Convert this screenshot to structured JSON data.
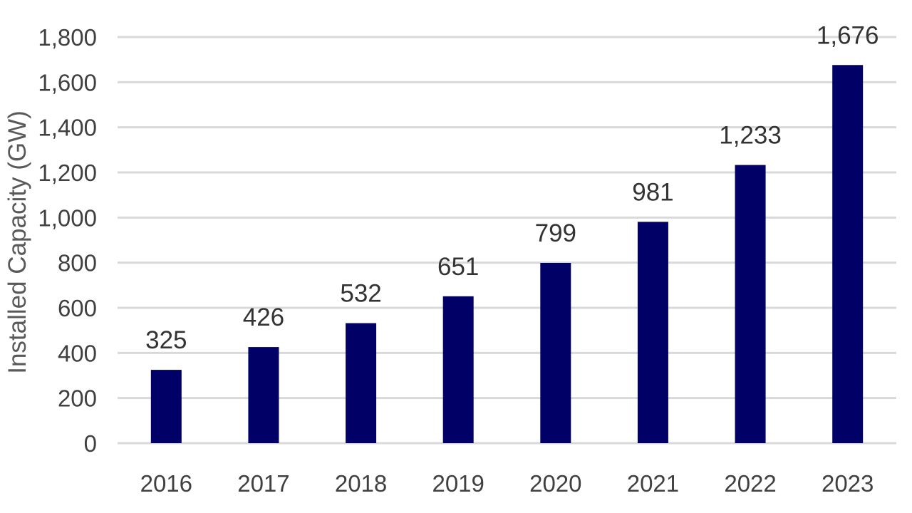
{
  "chart_data": {
    "type": "bar",
    "title": "",
    "xlabel": "",
    "ylabel": "Installed Capacity (GW)",
    "categories": [
      "2016",
      "2017",
      "2018",
      "2019",
      "2020",
      "2021",
      "2022",
      "2023"
    ],
    "values": [
      325,
      426,
      532,
      651,
      799,
      981,
      1233,
      1676
    ],
    "value_labels": [
      "325",
      "426",
      "532",
      "651",
      "799",
      "981",
      "1,233",
      "1,676"
    ],
    "ylim": [
      0,
      1800
    ],
    "yticks": [
      0,
      200,
      400,
      600,
      800,
      1000,
      1200,
      1400,
      1600,
      1800
    ],
    "ytick_labels": [
      "0",
      "200",
      "400",
      "600",
      "800",
      "1,000",
      "1,200",
      "1,400",
      "1,600",
      "1,800"
    ],
    "grid": true,
    "legend": "none",
    "bar_color": "#000066",
    "grid_color": "#d9d9d9"
  }
}
